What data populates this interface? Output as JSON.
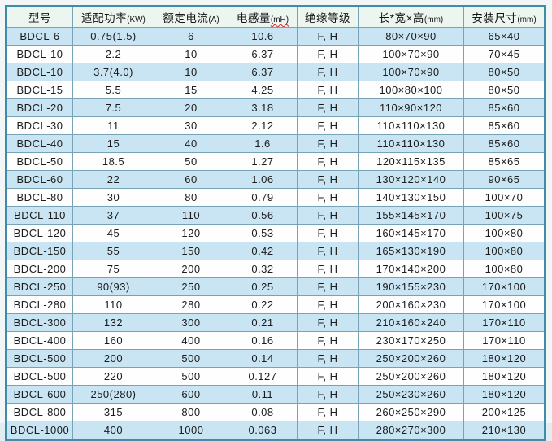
{
  "chart_data": {
    "type": "table",
    "columns": [
      {
        "label": "型号",
        "unit": ""
      },
      {
        "label": "适配功率",
        "unit": "(KW)"
      },
      {
        "label": "额定电流",
        "unit": "(A)"
      },
      {
        "label": "电感量",
        "unit": "(mH)",
        "wavy_underline": true
      },
      {
        "label": "绝缘等级",
        "unit": ""
      },
      {
        "label": "长*宽×高",
        "unit": "(mm)"
      },
      {
        "label": "安装尺寸",
        "unit": "(mm)"
      }
    ],
    "rows": [
      [
        "BDCL-6",
        "0.75(1.5)",
        "6",
        "10.6",
        "F, H",
        "80×70×90",
        "65×40"
      ],
      [
        "BDCL-10",
        "2.2",
        "10",
        "6.37",
        "F, H",
        "100×70×90",
        "70×45"
      ],
      [
        "BDCL-10",
        "3.7(4.0)",
        "10",
        "6.37",
        "F, H",
        "100×70×90",
        "80×50"
      ],
      [
        "BDCL-15",
        "5.5",
        "15",
        "4.25",
        "F, H",
        "100×80×100",
        "80×50"
      ],
      [
        "BDCL-20",
        "7.5",
        "20",
        "3.18",
        "F, H",
        "110×90×120",
        "85×60"
      ],
      [
        "BDCL-30",
        "11",
        "30",
        "2.12",
        "F, H",
        "110×110×130",
        "85×60"
      ],
      [
        "BDCL-40",
        "15",
        "40",
        "1.6",
        "F, H",
        "110×110×130",
        "85×60"
      ],
      [
        "BDCL-50",
        "18.5",
        "50",
        "1.27",
        "F, H",
        "120×115×135",
        "85×65"
      ],
      [
        "BDCL-60",
        "22",
        "60",
        "1.06",
        "F, H",
        "130×120×140",
        "90×65"
      ],
      [
        "BDCL-80",
        "30",
        "80",
        "0.79",
        "F, H",
        "140×130×150",
        "100×70"
      ],
      [
        "BDCL-110",
        "37",
        "110",
        "0.56",
        "F, H",
        "155×145×170",
        "100×75"
      ],
      [
        "BDCL-120",
        "45",
        "120",
        "0.53",
        "F, H",
        "160×145×170",
        "100×80"
      ],
      [
        "BDCL-150",
        "55",
        "150",
        "0.42",
        "F, H",
        "165×130×190",
        "100×80"
      ],
      [
        "BDCL-200",
        "75",
        "200",
        "0.32",
        "F, H",
        "170×140×200",
        "100×80"
      ],
      [
        "BDCL-250",
        "90(93)",
        "250",
        "0.25",
        "F, H",
        "190×155×230",
        "170×100"
      ],
      [
        "BDCL-280",
        "110",
        "280",
        "0.22",
        "F, H",
        "200×160×230",
        "170×100"
      ],
      [
        "BDCL-300",
        "132",
        "300",
        "0.21",
        "F, H",
        "210×160×240",
        "170×110"
      ],
      [
        "BDCL-400",
        "160",
        "400",
        "0.16",
        "F, H",
        "230×170×250",
        "170×110"
      ],
      [
        "BDCL-500",
        "200",
        "500",
        "0.14",
        "F, H",
        "250×200×260",
        "180×120"
      ],
      [
        "BDCL-500",
        "220",
        "500",
        "0.127",
        "F, H",
        "250×200×260",
        "180×120"
      ],
      [
        "BDCL-600",
        "250(280)",
        "600",
        "0.11",
        "F, H",
        "250×230×260",
        "180×120"
      ],
      [
        "BDCL-800",
        "315",
        "800",
        "0.08",
        "F, H",
        "260×250×290",
        "200×125"
      ],
      [
        "BDCL-1000",
        "400",
        "1000",
        "0.063",
        "F, H",
        "280×270×300",
        "210×130"
      ]
    ],
    "layout": {
      "grid": true,
      "striped_rows": true
    }
  },
  "colors": {
    "frame_border": "#3e8ca6",
    "grid_border": "#78a2b6",
    "header_bg": "#edf5f0",
    "row_alt_bg": "#c9e4f2",
    "row_bg": "#fdfefd",
    "text": "#1b1b1b",
    "unit_underline_squiggle": "#cc2b2b",
    "page_bg": "#f2f6f6"
  }
}
